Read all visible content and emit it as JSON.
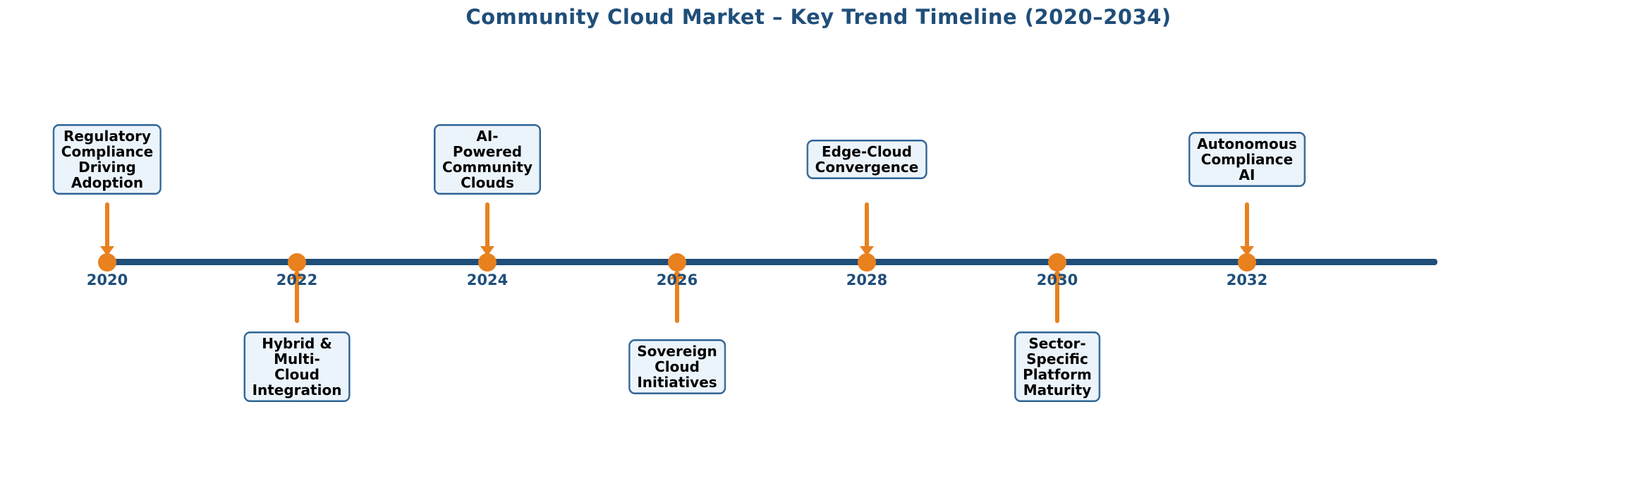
{
  "title": "Community Cloud Market – Key Trend Timeline (2020–2034)",
  "colors": {
    "title_navy": "#1f4e79",
    "axis_line_navy": "#1f4e79",
    "marker_orange": "#e8811e",
    "box_fill": "#ecf4fb",
    "box_border": "#2e6496",
    "box_text": "#000000",
    "background": "#ffffff"
  },
  "timeline": {
    "start_year": "2020",
    "end_year": "2034",
    "tick_step_years": 2
  },
  "events": [
    {
      "year": "2020",
      "side": "above",
      "label": "Regulatory\nCompliance\nDriving Adoption"
    },
    {
      "year": "2022",
      "side": "below",
      "label": "Hybrid & Multi-Cloud\nIntegration"
    },
    {
      "year": "2024",
      "side": "above",
      "label": "AI-Powered\nCommunity Clouds"
    },
    {
      "year": "2026",
      "side": "below",
      "label": "Sovereign Cloud\nInitiatives"
    },
    {
      "year": "2028",
      "side": "above",
      "label": "Edge-Cloud\nConvergence"
    },
    {
      "year": "2030",
      "side": "below",
      "label": "Sector-Specific\nPlatform Maturity"
    },
    {
      "year": "2032",
      "side": "above",
      "label": "Autonomous\nCompliance AI"
    }
  ],
  "chart_data": {
    "type": "timeline",
    "title": "Community Cloud Market – Key Trend Timeline (2020–2034)",
    "x": [
      2020,
      2022,
      2024,
      2026,
      2028,
      2030,
      2032
    ],
    "labels": [
      "Regulatory Compliance Driving Adoption",
      "Hybrid & Multi-Cloud Integration",
      "AI-Powered Community Clouds",
      "Sovereign Cloud Initiatives",
      "Edge-Cloud Convergence",
      "Sector-Specific Platform Maturity",
      "Autonomous Compliance AI"
    ],
    "label_side": [
      "above",
      "below",
      "above",
      "below",
      "above",
      "below",
      "above"
    ],
    "xlim": [
      2020,
      2034
    ],
    "grid": false,
    "legend": false
  }
}
